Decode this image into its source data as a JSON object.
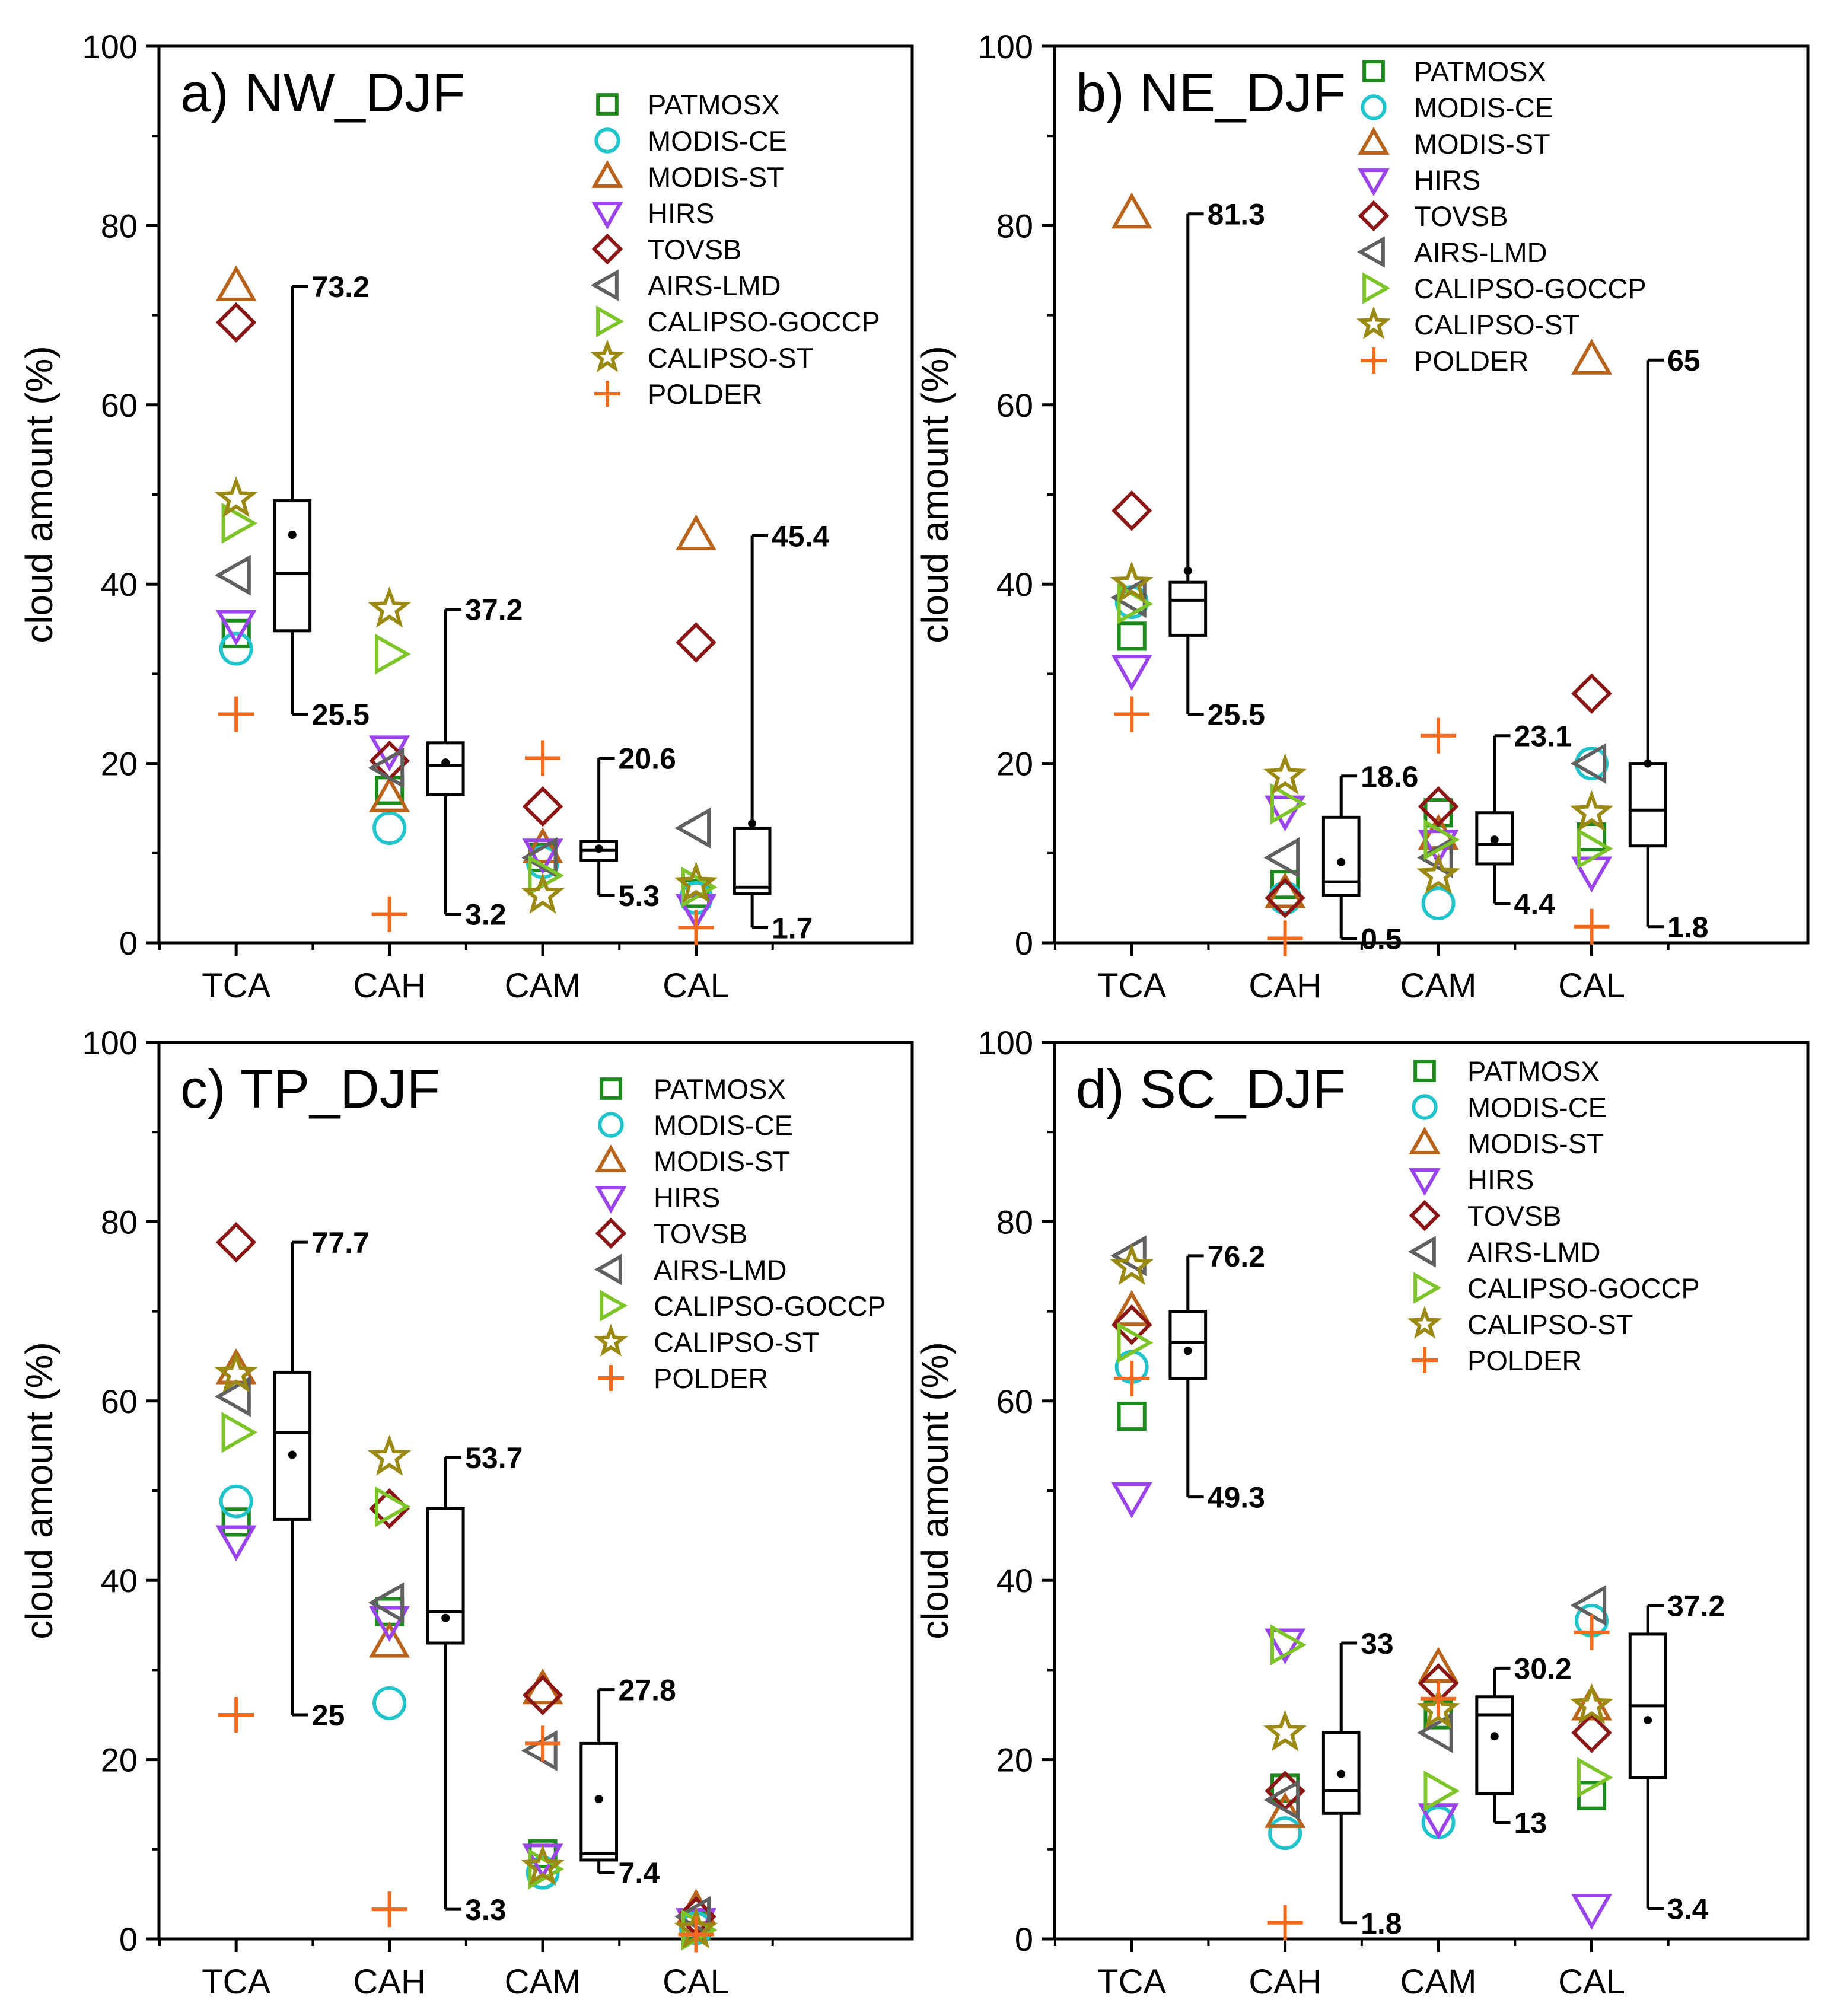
{
  "colors": {
    "PATMOSX": "#1e8a1e",
    "MODIS-CE": "#22c4cc",
    "MODIS-ST": "#b8641c",
    "HIRS": "#9a44ee",
    "TOVSB": "#8a1616",
    "AIRS-LMD": "#606060",
    "CALIPSO-GOCCP": "#7cc428",
    "CALIPSO-ST": "#9a8a14",
    "POLDER": "#f26a1e",
    "box": "#000000"
  },
  "chart_data": [
    {
      "type": "box",
      "title": "a) NW_DJF",
      "ylabel": "cloud amount (%)",
      "ylim": [
        0,
        100
      ],
      "yticks": [
        "0",
        "20",
        "40",
        "60",
        "80",
        "100"
      ],
      "categories": [
        "TCA",
        "CAH",
        "CAM",
        "CAL"
      ],
      "legend": [
        "PATMOSX",
        "MODIS-CE",
        "MODIS-ST",
        "HIRS",
        "TOVSB",
        "AIRS-LMD",
        "CALIPSO-GOCCP",
        "CALIPSO-ST",
        "POLDER"
      ],
      "series": [
        {
          "name": "PATMOSX",
          "values": [
            34.5,
            17.0,
            9.5,
            5.5
          ]
        },
        {
          "name": "MODIS-CE",
          "values": [
            32.8,
            12.8,
            9.0,
            5.0
          ]
        },
        {
          "name": "MODIS-ST",
          "values": [
            73.2,
            16.2,
            10.5,
            45.4
          ]
        },
        {
          "name": "HIRS",
          "values": [
            35.5,
            21.5,
            10.0,
            3.8
          ]
        },
        {
          "name": "TOVSB",
          "values": [
            69.2,
            20.3,
            15.2,
            33.5
          ]
        },
        {
          "name": "AIRS-LMD",
          "values": [
            41.0,
            19.5,
            9.5,
            12.8
          ]
        },
        {
          "name": "CALIPSO-GOCCP",
          "values": [
            46.8,
            32.2,
            7.5,
            6.2
          ]
        },
        {
          "name": "CALIPSO-ST",
          "values": [
            49.5,
            37.2,
            5.3,
            6.5
          ]
        },
        {
          "name": "POLDER",
          "values": [
            25.5,
            3.2,
            20.6,
            1.7
          ]
        }
      ],
      "boxes": [
        {
          "min": 25.5,
          "q1": 34.8,
          "median": 41.2,
          "q3": 49.3,
          "max": 73.2,
          "mean": 45.5,
          "max_label": "73.2",
          "min_label": "25.5"
        },
        {
          "min": 3.2,
          "q1": 16.5,
          "median": 19.8,
          "q3": 22.3,
          "max": 37.2,
          "mean": 20.1,
          "max_label": "37.2",
          "min_label": "3.2"
        },
        {
          "min": 5.3,
          "q1": 9.2,
          "median": 10.3,
          "q3": 11.3,
          "max": 20.6,
          "mean": 10.5,
          "max_label": "20.6",
          "min_label": "5.3"
        },
        {
          "min": 1.7,
          "q1": 5.5,
          "median": 6.2,
          "q3": 12.8,
          "max": 45.4,
          "mean": 13.3,
          "max_label": "45.4",
          "min_label": "1.7"
        }
      ]
    },
    {
      "type": "box",
      "title": "b) NE_DJF",
      "ylabel": "cloud amount (%)",
      "ylim": [
        0,
        100
      ],
      "yticks": [
        "0",
        "20",
        "40",
        "60",
        "80",
        "100"
      ],
      "categories": [
        "TCA",
        "CAH",
        "CAM",
        "CAL"
      ],
      "legend": [
        "PATMOSX",
        "MODIS-CE",
        "MODIS-ST",
        "HIRS",
        "TOVSB",
        "AIRS-LMD",
        "CALIPSO-GOCCP",
        "CALIPSO-ST",
        "POLDER"
      ],
      "series": [
        {
          "name": "PATMOSX",
          "values": [
            34.2,
            6.5,
            14.5,
            11.8
          ]
        },
        {
          "name": "MODIS-CE",
          "values": [
            38.0,
            5.0,
            4.4,
            20.0
          ]
        },
        {
          "name": "MODIS-ST",
          "values": [
            81.3,
            5.5,
            12.0,
            65.0
          ]
        },
        {
          "name": "HIRS",
          "values": [
            30.5,
            14.8,
            11.0,
            8.0
          ]
        },
        {
          "name": "TOVSB",
          "values": [
            48.2,
            5.0,
            15.2,
            27.8
          ]
        },
        {
          "name": "AIRS-LMD",
          "values": [
            38.5,
            9.5,
            9.5,
            20.0
          ]
        },
        {
          "name": "CALIPSO-GOCCP",
          "values": [
            37.8,
            15.5,
            11.5,
            10.5
          ]
        },
        {
          "name": "CALIPSO-ST",
          "values": [
            40.0,
            18.6,
            7.5,
            14.5
          ]
        },
        {
          "name": "POLDER",
          "values": [
            25.5,
            0.5,
            23.1,
            1.8
          ]
        }
      ],
      "boxes": [
        {
          "min": 25.5,
          "q1": 34.3,
          "median": 38.2,
          "q3": 40.2,
          "max": 81.3,
          "mean": 41.5,
          "max_label": "81.3",
          "min_label": "25.5"
        },
        {
          "min": 0.5,
          "q1": 5.3,
          "median": 6.8,
          "q3": 14.0,
          "max": 18.6,
          "mean": 9.0,
          "max_label": "18.6",
          "min_label": "0.5"
        },
        {
          "min": 4.4,
          "q1": 8.8,
          "median": 11.0,
          "q3": 14.5,
          "max": 23.1,
          "mean": 11.5,
          "max_label": "23.1",
          "min_label": "4.4"
        },
        {
          "min": 1.8,
          "q1": 10.8,
          "median": 14.8,
          "q3": 20.0,
          "max": 65.0,
          "mean": 20.0,
          "max_label": "65",
          "min_label": "1.8"
        }
      ]
    },
    {
      "type": "box",
      "title": "c) TP_DJF",
      "ylabel": "cloud amount (%)",
      "ylim": [
        0,
        100
      ],
      "yticks": [
        "0",
        "20",
        "40",
        "60",
        "80",
        "100"
      ],
      "categories": [
        "TCA",
        "CAH",
        "CAM",
        "CAL"
      ],
      "legend": [
        "PATMOSX",
        "MODIS-CE",
        "MODIS-ST",
        "HIRS",
        "TOVSB",
        "AIRS-LMD",
        "CALIPSO-GOCCP",
        "CALIPSO-ST",
        "POLDER"
      ],
      "series": [
        {
          "name": "PATMOSX",
          "values": [
            46.5,
            36.5,
            9.5,
            1.5
          ]
        },
        {
          "name": "MODIS-CE",
          "values": [
            48.8,
            26.3,
            7.4,
            1.2
          ]
        },
        {
          "name": "MODIS-ST",
          "values": [
            63.5,
            33.0,
            27.8,
            3.2
          ]
        },
        {
          "name": "HIRS",
          "values": [
            44.5,
            35.5,
            9.0,
            1.8
          ]
        },
        {
          "name": "TOVSB",
          "values": [
            77.7,
            48.0,
            27.2,
            2.5
          ]
        },
        {
          "name": "AIRS-LMD",
          "values": [
            60.5,
            37.5,
            21.0,
            2.5
          ]
        },
        {
          "name": "CALIPSO-GOCCP",
          "values": [
            56.5,
            48.2,
            7.8,
            1.0
          ]
        },
        {
          "name": "CALIPSO-ST",
          "values": [
            63.0,
            53.7,
            8.0,
            1.0
          ]
        },
        {
          "name": "POLDER",
          "values": [
            25.0,
            3.3,
            21.8,
            0.5
          ]
        }
      ],
      "boxes": [
        {
          "min": 25.0,
          "q1": 46.8,
          "median": 56.5,
          "q3": 63.2,
          "max": 77.7,
          "mean": 54.0,
          "max_label": "77.7",
          "min_label": "25"
        },
        {
          "min": 3.3,
          "q1": 33.0,
          "median": 36.5,
          "q3": 48.0,
          "max": 53.7,
          "mean": 35.8,
          "max_label": "53.7",
          "min_label": "3.3"
        },
        {
          "min": 7.4,
          "q1": 8.8,
          "median": 9.5,
          "q3": 21.8,
          "max": 27.8,
          "mean": 15.6,
          "max_label": "27.8",
          "min_label": "7.4"
        },
        {
          "min": null,
          "q1": null,
          "median": null,
          "q3": null,
          "max": null,
          "mean": null,
          "max_label": null,
          "min_label": null
        }
      ]
    },
    {
      "type": "box",
      "title": "d) SC_DJF",
      "ylabel": "cloud amount (%)",
      "ylim": [
        0,
        100
      ],
      "yticks": [
        "0",
        "20",
        "40",
        "60",
        "80",
        "100"
      ],
      "categories": [
        "TCA",
        "CAH",
        "CAM",
        "CAL"
      ],
      "legend": [
        "PATMOSX",
        "MODIS-CE",
        "MODIS-ST",
        "HIRS",
        "TOVSB",
        "AIRS-LMD",
        "CALIPSO-GOCCP",
        "CALIPSO-ST",
        "POLDER"
      ],
      "series": [
        {
          "name": "PATMOSX",
          "values": [
            58.3,
            16.8,
            25.0,
            16.0
          ]
        },
        {
          "name": "MODIS-CE",
          "values": [
            63.8,
            11.8,
            13.0,
            35.5
          ]
        },
        {
          "name": "MODIS-ST",
          "values": [
            70.0,
            14.0,
            30.2,
            26.0
          ]
        },
        {
          "name": "HIRS",
          "values": [
            49.3,
            33.0,
            13.5,
            3.4
          ]
        },
        {
          "name": "TOVSB",
          "values": [
            68.5,
            16.5,
            28.5,
            23.0
          ]
        },
        {
          "name": "AIRS-LMD",
          "values": [
            76.2,
            15.5,
            23.0,
            37.2
          ]
        },
        {
          "name": "CALIPSO-GOCCP",
          "values": [
            66.5,
            32.8,
            16.5,
            18.0
          ]
        },
        {
          "name": "CALIPSO-ST",
          "values": [
            75.0,
            23.0,
            25.5,
            26.0
          ]
        },
        {
          "name": "POLDER",
          "values": [
            62.5,
            1.8,
            26.8,
            34.2
          ]
        }
      ],
      "boxes": [
        {
          "min": 49.3,
          "q1": 62.5,
          "median": 66.5,
          "q3": 70.0,
          "max": 76.2,
          "mean": 65.6,
          "max_label": "76.2",
          "min_label": "49.3"
        },
        {
          "min": 1.8,
          "q1": 14.0,
          "median": 16.5,
          "q3": 23.0,
          "max": 33.0,
          "mean": 18.4,
          "max_label": "33",
          "min_label": "1.8"
        },
        {
          "min": 13.0,
          "q1": 16.2,
          "median": 25.0,
          "q3": 27.0,
          "max": 30.2,
          "mean": 22.6,
          "max_label": "30.2",
          "min_label": "13"
        },
        {
          "min": 3.4,
          "q1": 18.0,
          "median": 26.0,
          "q3": 34.0,
          "max": 37.2,
          "mean": 24.4,
          "max_label": "37.2",
          "min_label": "3.4"
        }
      ]
    }
  ]
}
